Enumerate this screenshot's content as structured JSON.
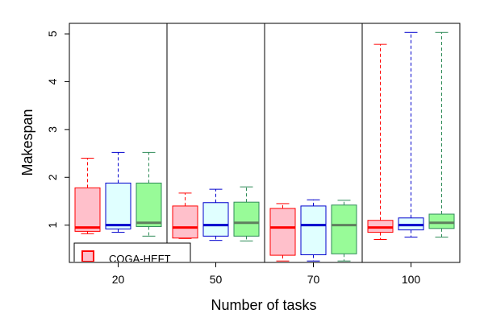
{
  "chart_data": {
    "type": "boxplot",
    "xlabel": "Number of tasks",
    "ylabel": "Makespan",
    "ylim": [
      0.22,
      5.22
    ],
    "yticks": [
      1,
      2,
      3,
      4,
      5
    ],
    "groups": [
      "20",
      "50",
      "70",
      "100"
    ],
    "series": [
      {
        "name": "CQGA-HEFT",
        "color": "#ff0000",
        "fill": "#ffc0cb",
        "median_color": "#ff0000",
        "boxes": [
          {
            "whisker_low": 0.82,
            "q1": 0.87,
            "median": 0.95,
            "q3": 1.78,
            "whisker_high": 2.4
          },
          {
            "whisker_low": 0.72,
            "q1": 0.73,
            "median": 0.95,
            "q3": 1.4,
            "whisker_high": 1.67
          },
          {
            "whisker_low": 0.25,
            "q1": 0.37,
            "median": 0.95,
            "q3": 1.35,
            "whisker_high": 1.45
          },
          {
            "whisker_low": 0.7,
            "q1": 0.85,
            "median": 0.95,
            "q3": 1.1,
            "whisker_high": 4.78
          }
        ]
      },
      {
        "name": "",
        "color": "#0000cd",
        "fill": "#e0ffff",
        "median_color": "#0000cd",
        "boxes": [
          {
            "whisker_low": 0.85,
            "q1": 0.92,
            "median": 1.0,
            "q3": 1.88,
            "whisker_high": 2.52
          },
          {
            "whisker_low": 0.68,
            "q1": 0.77,
            "median": 1.0,
            "q3": 1.47,
            "whisker_high": 1.75
          },
          {
            "whisker_low": 0.25,
            "q1": 0.38,
            "median": 1.0,
            "q3": 1.4,
            "whisker_high": 1.53
          },
          {
            "whisker_low": 0.75,
            "q1": 0.9,
            "median": 1.0,
            "q3": 1.15,
            "whisker_high": 5.03
          }
        ]
      },
      {
        "name": "",
        "color": "#2e8b57",
        "fill": "#98fb98",
        "median_color": "#5f7f5f",
        "boxes": [
          {
            "whisker_low": 0.77,
            "q1": 0.97,
            "median": 1.05,
            "q3": 1.88,
            "whisker_high": 2.52
          },
          {
            "whisker_low": 0.67,
            "q1": 0.77,
            "median": 1.05,
            "q3": 1.48,
            "whisker_high": 1.8
          },
          {
            "whisker_low": 0.25,
            "q1": 0.4,
            "median": 1.0,
            "q3": 1.42,
            "whisker_high": 1.52
          },
          {
            "whisker_low": 0.75,
            "q1": 0.93,
            "median": 1.05,
            "q3": 1.23,
            "whisker_high": 5.03
          }
        ]
      }
    ],
    "legend": {
      "entries": [
        "CQGA-HEFT"
      ],
      "placement": "bottom-left"
    }
  }
}
